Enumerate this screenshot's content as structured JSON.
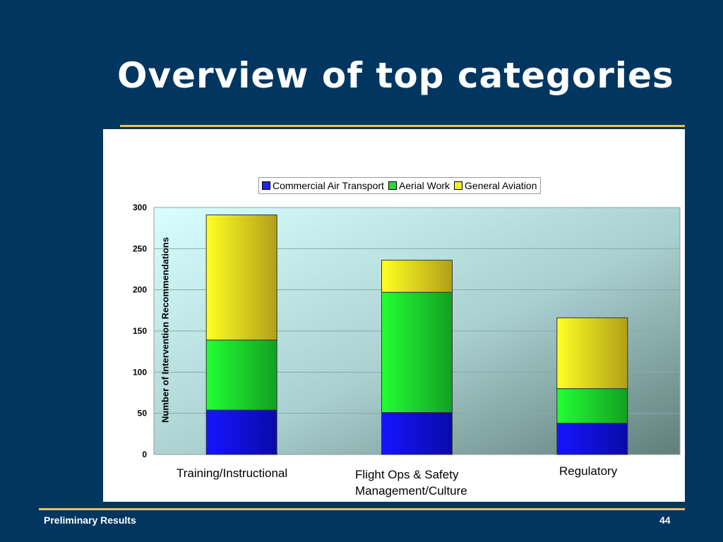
{
  "slide": {
    "title": "Overview of top categories",
    "footer_left": "Preliminary Results",
    "page_number": "44",
    "colors": {
      "background": "#003660",
      "rule": "#e8c15a"
    }
  },
  "chart_data": {
    "type": "bar",
    "stacked": true,
    "categories": [
      "Training/Instructional",
      "Flight Ops & Safety Management/Culture",
      "Regulatory"
    ],
    "category_lines": [
      [
        "Training/Instructional"
      ],
      [
        "Flight Ops & Safety",
        "Management/Culture"
      ],
      [
        "Regulatory"
      ]
    ],
    "series": [
      {
        "name": "Commercial Air Transport",
        "values": [
          54,
          51,
          38
        ],
        "color": "#0000ee"
      },
      {
        "name": "Aerial Work",
        "values": [
          85,
          146,
          42
        ],
        "color": "#11dd22"
      },
      {
        "name": "General Aviation",
        "values": [
          152,
          39,
          86
        ],
        "color": "#f0f020"
      }
    ],
    "ylabel": "Number of Intervention Recommendations",
    "ylim": [
      0,
      300
    ],
    "yticks": [
      0,
      50,
      100,
      150,
      200,
      250,
      300
    ],
    "grid": true,
    "legend": "top"
  }
}
